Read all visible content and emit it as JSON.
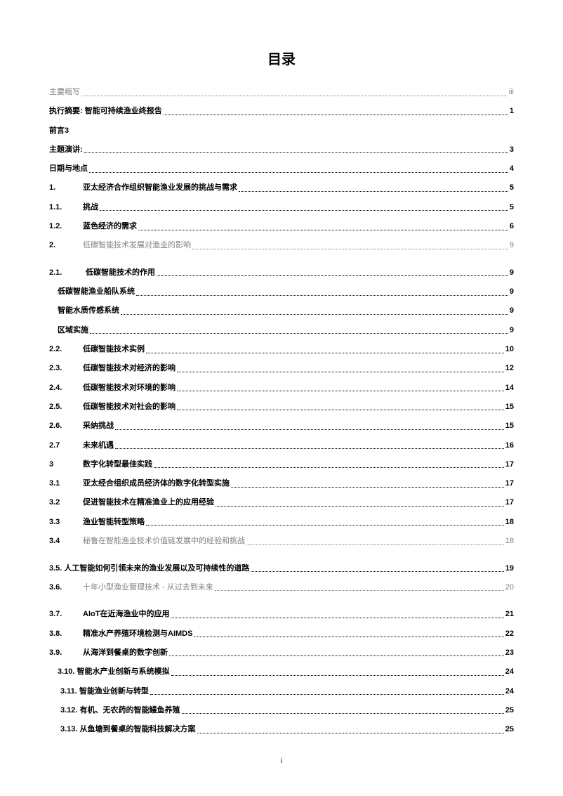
{
  "title": "目录",
  "page_footer": "i",
  "entries": [
    {
      "num": "",
      "label": "主要缩写",
      "page": "iii",
      "style": "gray-all",
      "indent": 0,
      "leader_color": "#808080"
    },
    {
      "num": "",
      "label": "执行摘要: 智能可持续渔业终报告",
      "page": "1",
      "style": "bold",
      "indent": 0
    },
    {
      "num": "",
      "label": "前言3",
      "page": "",
      "style": "bold",
      "indent": 0,
      "no_leader": true
    },
    {
      "num": "",
      "label": "主题演讲:",
      "page": "3",
      "style": "bold",
      "indent": 0
    },
    {
      "num": "",
      "label": "日期与地点",
      "page": "4",
      "style": "bold",
      "indent": 0
    },
    {
      "num": "1.",
      "label": "亚太经济合作组织智能渔业发展的挑战与需求",
      "page": "5",
      "style": "bold",
      "indent": 0
    },
    {
      "num": "1.1.",
      "label": "挑战",
      "page": "5",
      "style": "bold",
      "indent": 0
    },
    {
      "num": "1.2.",
      "label": "蓝色经济的需求",
      "page": "6",
      "style": "bold",
      "indent": 0
    },
    {
      "num": "2.",
      "label": "低碳智能技术发展对渔业的影响",
      "page": "9",
      "style": "gray",
      "indent": 0,
      "extra_gap": true
    },
    {
      "num": "2.1.",
      "label": "低碳智能技术的作用",
      "page": "9",
      "style": "bold",
      "indent": 0,
      "wide": true
    },
    {
      "num": "",
      "label": "低碳智能渔业船队系统",
      "page": "9",
      "style": "bold",
      "indent": 1
    },
    {
      "num": "",
      "label": "智能水质传感系统",
      "page": "9",
      "style": "bold",
      "indent": 1
    },
    {
      "num": "",
      "label": "区域实施",
      "page": "9",
      "style": "bold",
      "indent": 1
    },
    {
      "num": "2.2.",
      "label": "低碳智能技术实例",
      "page": "10",
      "style": "bold",
      "indent": 0
    },
    {
      "num": "2.3.",
      "label": "低碳智能技术对经济的影响",
      "page": "12",
      "style": "bold",
      "indent": 0
    },
    {
      "num": "2.4.",
      "label": "低碳智能技术对环境的影响",
      "page": "14",
      "style": "bold",
      "indent": 0
    },
    {
      "num": "2.5.",
      "label": "低碳智能技术对社会的影响",
      "page": "15",
      "style": "bold",
      "indent": 0
    },
    {
      "num": "2.6.",
      "label": "采纳挑战",
      "page": "15",
      "style": "bold",
      "indent": 0
    },
    {
      "num": "2.7",
      "label": "未来机遇",
      "page": "16",
      "style": "bold",
      "indent": 0
    },
    {
      "num": "3",
      "label": "数字化转型最佳实践",
      "page": "17",
      "style": "bold",
      "indent": 0
    },
    {
      "num": "3.1",
      "label": "亚太经合组织成员经济体的数字化转型实施",
      "page": "17",
      "style": "bold",
      "indent": 0
    },
    {
      "num": "3.2",
      "label": "促进智能技术在精准渔业上的应用经验",
      "page": "17",
      "style": "bold",
      "indent": 0
    },
    {
      "num": "3.3",
      "label": "渔业智能转型策略",
      "page": "18",
      "style": "bold",
      "indent": 0
    },
    {
      "num": "3.4",
      "label": "秘鲁在智能渔业技术价值链发展中的经验和挑战",
      "page": "18",
      "style": "gray",
      "indent": 0,
      "extra_gap": true
    },
    {
      "num": "",
      "label": "3.5. 人工智能如何引领未来的渔业发展以及可持续性的道路",
      "page": "19",
      "style": "bold",
      "indent": 0
    },
    {
      "num": "3.6.",
      "label": "十年小型渔业管理技术 - 从过去到未来",
      "page": "20",
      "style": "gray",
      "indent": 0,
      "extra_gap": true
    },
    {
      "num": "3.7.",
      "label": "AIoT在近海渔业中的应用",
      "page": "21",
      "style": "bold",
      "indent": 0
    },
    {
      "num": "3.8.",
      "label": "精准水产养殖环境检测与AIMDS",
      "page": "22",
      "style": "bold",
      "indent": 0
    },
    {
      "num": "3.9.",
      "label": " 从海洋到餐桌的数字创新",
      "page": "23",
      "style": "bold",
      "indent": 0
    },
    {
      "num": "",
      "label": "3.10. 智能水产业创新与系统模拟",
      "page": "24",
      "style": "bold",
      "indent": 1
    },
    {
      "num": "",
      "label": "3.11. 智能渔业创新与转型",
      "page": "24",
      "style": "bold",
      "indent": 2
    },
    {
      "num": "",
      "label": "3.12. 有机、无农药的智能鳗鱼养殖",
      "page": "25",
      "style": "bold",
      "indent": 2
    },
    {
      "num": "",
      "label": "3.13. 从鱼塘到餐桌的智能科技解决方案",
      "page": "25",
      "style": "bold",
      "indent": 2
    }
  ]
}
